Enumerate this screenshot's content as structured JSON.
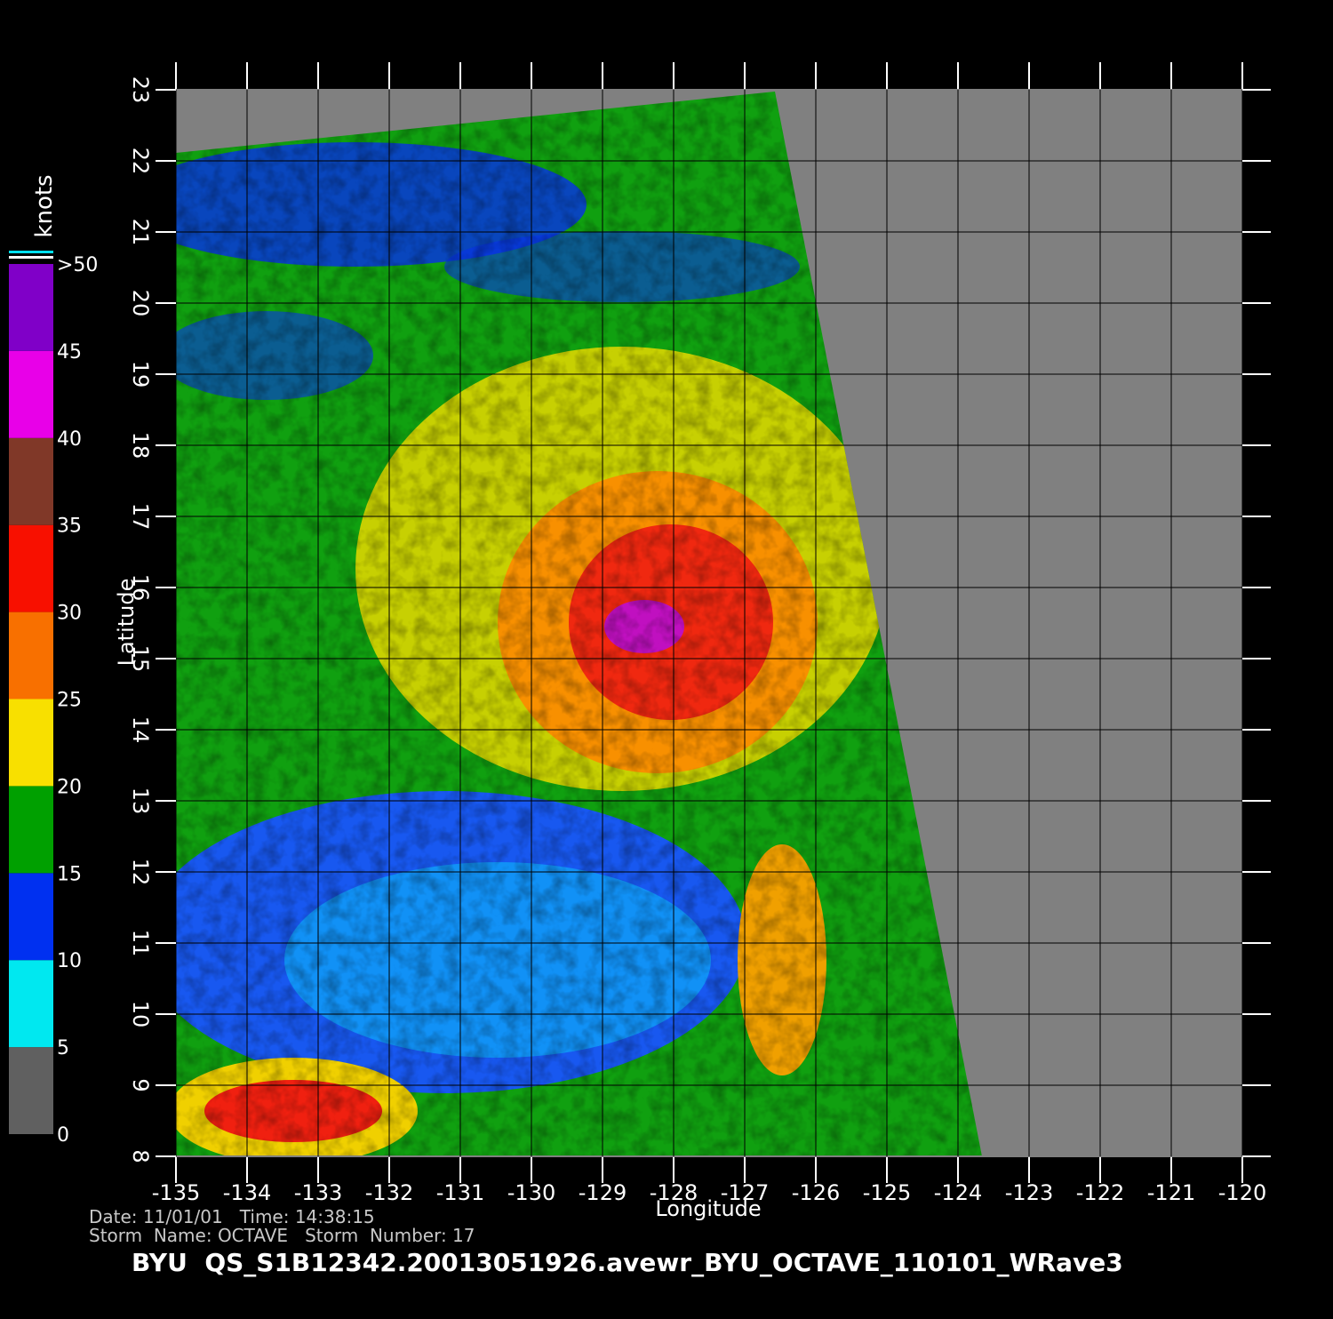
{
  "map": {
    "xlabel": "Longitude",
    "ylabel": "Latitude",
    "xlim": [
      -135,
      -120
    ],
    "ylim": [
      8,
      23
    ],
    "xticks": [
      -135,
      -134,
      -133,
      -132,
      -131,
      -130,
      -129,
      -128,
      -127,
      -126,
      -125,
      -124,
      -123,
      -122,
      -121,
      -120
    ],
    "yticks": [
      8,
      9,
      10,
      11,
      12,
      13,
      14,
      15,
      16,
      17,
      18,
      19,
      20,
      21,
      22,
      23
    ],
    "grid": true
  },
  "colorbar": {
    "title": "knots",
    "lim": [
      0,
      50
    ],
    "ticks": [
      0,
      5,
      10,
      15,
      20,
      25,
      30,
      35,
      40,
      45,
      {
        "value": 50,
        "label": ">50"
      }
    ],
    "colors": [
      "#606060",
      "#00e8f0",
      "#0030f0",
      "#00a000",
      "#f8e000",
      "#f87000",
      "#f81000",
      "#803828",
      "#e800e8",
      "#8000c8"
    ]
  },
  "info": {
    "line1": "Date: 11/01/01   Time: 14:38:15",
    "line2": "Storm  Name: OCTAVE   Storm  Number: 17"
  },
  "title": "BYU  QS_S1B12342.20013051926.avewr_BYU_OCTAVE_110101_WRave3"
}
